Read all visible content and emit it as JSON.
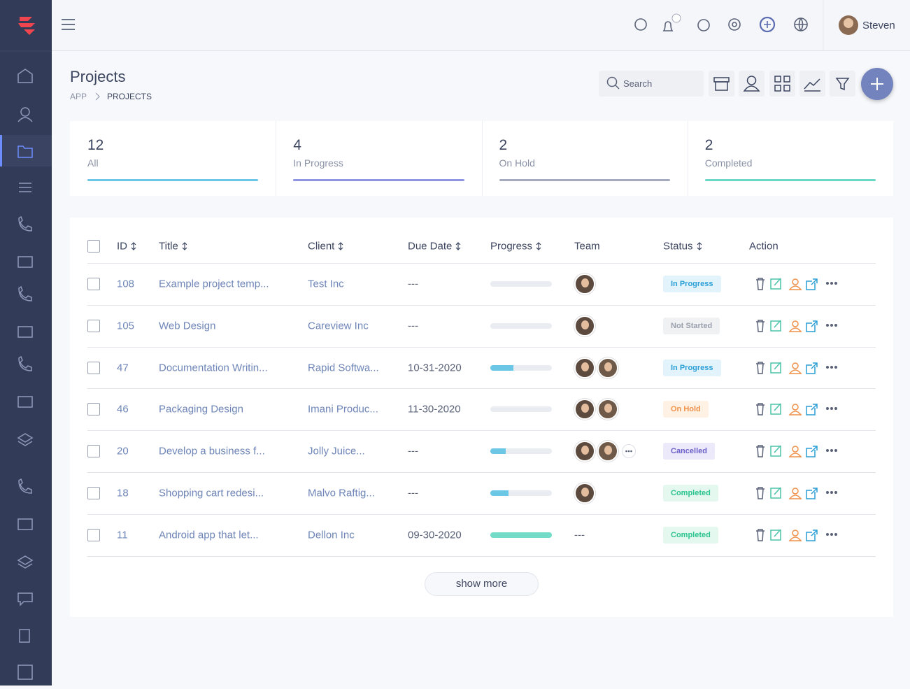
{
  "header": {
    "user": "Steven"
  },
  "page": {
    "title": "Projects",
    "breadcrumb": [
      "APP",
      "PROJECTS"
    ],
    "search_placeholder": "Search",
    "show_more": "show more"
  },
  "stats": [
    {
      "value": 12,
      "label": "All",
      "color": "#6cc6e6"
    },
    {
      "value": 4,
      "label": "In Progress",
      "color": "#8f95e0"
    },
    {
      "value": 2,
      "label": "On Hold",
      "color": "#a5abbd"
    },
    {
      "value": 2,
      "label": "Completed",
      "color": "#6ad8c4"
    }
  ],
  "table": {
    "columns": [
      "ID",
      "Title",
      "Client",
      "Due Date",
      "Progress",
      "Team",
      "Status",
      "Action"
    ],
    "sortable": [
      true,
      true,
      true,
      true,
      true,
      false,
      true,
      false
    ],
    "progress_color": "#6cc6e6",
    "progress_done_color": "#72dcc9",
    "rows": [
      {
        "id": 108,
        "title": "Example project temp...",
        "client": "Test Inc",
        "due": "---",
        "progress": 0,
        "team": 1,
        "status": {
          "label": "In Progress",
          "color": "#2a9fd6",
          "bg": "#e2f3fb"
        }
      },
      {
        "id": 105,
        "title": "Web Design",
        "client": "Careview Inc",
        "due": "---",
        "progress": 0,
        "team": 1,
        "status": {
          "label": "Not Started",
          "color": "#9aa0ac",
          "bg": "#f0f1f3"
        }
      },
      {
        "id": 47,
        "title": "Documentation Writin...",
        "client": "Rapid Softwa...",
        "due": "10-31-2020",
        "progress": 38,
        "team": 2,
        "status": {
          "label": "In Progress",
          "color": "#2a9fd6",
          "bg": "#e2f3fb"
        }
      },
      {
        "id": 46,
        "title": "Packaging Design",
        "client": "Imani Produc...",
        "due": "11-30-2020",
        "progress": 0,
        "team": 2,
        "status": {
          "label": "On Hold",
          "color": "#f0914a",
          "bg": "#fff1e4"
        }
      },
      {
        "id": 20,
        "title": "Develop a business f...",
        "client": "Jolly Juice...",
        "due": "---",
        "progress": 25,
        "team": 2,
        "status": {
          "label": "Cancelled",
          "color": "#6b5fc7",
          "bg": "#ebe9fa"
        }
      },
      {
        "id": 18,
        "title": "Shopping cart redesi...",
        "client": "Malvo Raftig...",
        "due": "---",
        "progress": 30,
        "team": 1,
        "status": {
          "label": "Completed",
          "color": "#2bc48e",
          "bg": "#e4f8ef"
        }
      },
      {
        "id": 11,
        "title": "Android app that let...",
        "client": "Dellon Inc",
        "due": "09-30-2020",
        "progress": 100,
        "team": "---",
        "status": {
          "label": "Completed",
          "color": "#2bc48e",
          "bg": "#e4f8ef"
        }
      }
    ]
  }
}
